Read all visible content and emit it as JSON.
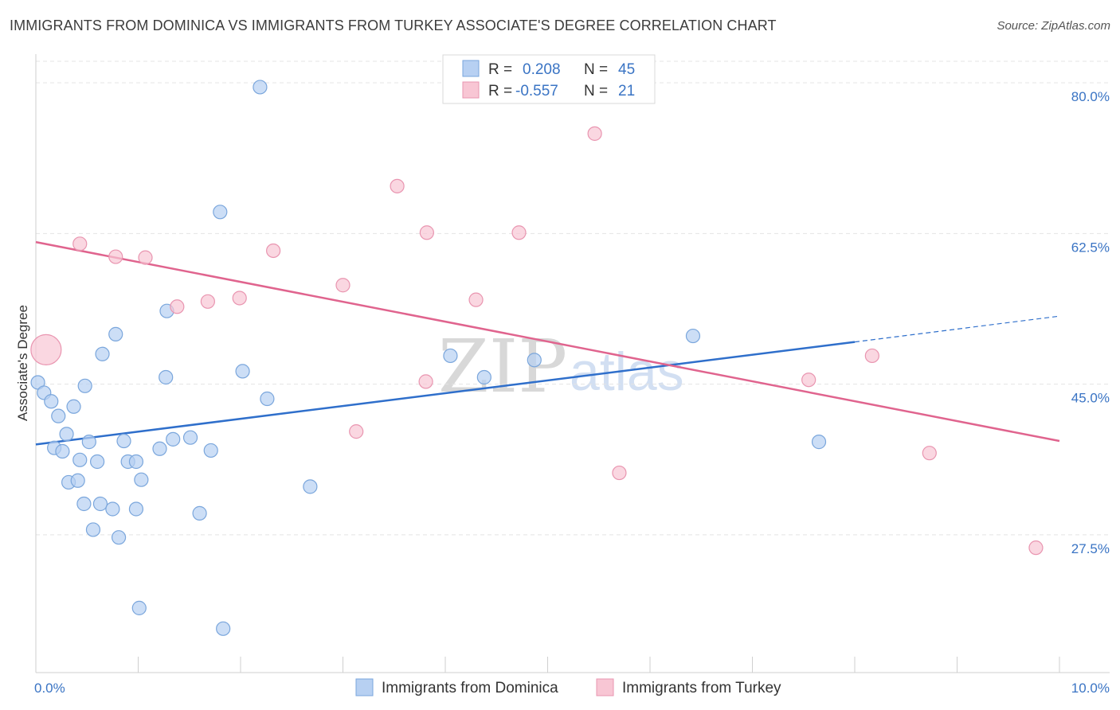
{
  "header": {
    "title": "IMMIGRANTS FROM DOMINICA VS IMMIGRANTS FROM TURKEY ASSOCIATE'S DEGREE CORRELATION CHART",
    "source": "Source: ZipAtlas.com"
  },
  "watermark": {
    "zip": "ZIP",
    "atlas": "atlas"
  },
  "colors": {
    "dominica_fill": "#b7d0f2",
    "dominica_stroke": "#7aa6dc",
    "dominica_line": "#2f6fcb",
    "turkey_fill": "#f8c6d4",
    "turkey_stroke": "#e995b0",
    "turkey_line": "#e0648e",
    "axis_text": "#3a74c4",
    "grid": "#e4e4e4"
  },
  "legend": {
    "rows": [
      {
        "r_label": "R =",
        "r_value": "0.208",
        "n_label": "N =",
        "n_value": "45"
      },
      {
        "r_label": "R =",
        "r_value": "-0.557",
        "n_label": "N =",
        "n_value": "21"
      }
    ]
  },
  "bottom_legend": [
    {
      "label": "Immigrants from Dominica"
    },
    {
      "label": "Immigrants from Turkey"
    }
  ],
  "chart_data": {
    "type": "scatter",
    "title": "IMMIGRANTS FROM DOMINICA VS IMMIGRANTS FROM TURKEY ASSOCIATE'S DEGREE CORRELATION CHART",
    "xlabel": "",
    "ylabel": "Associate's Degree",
    "xlim": [
      0,
      10
    ],
    "ylim": [
      11.5,
      82.5
    ],
    "x_tick_labels": [
      "0.0%",
      "10.0%"
    ],
    "y_ticks": [
      27.5,
      45.0,
      62.5,
      80.0
    ],
    "y_tick_labels": [
      "27.5%",
      "45.0%",
      "62.5%",
      "80.0%"
    ],
    "grid": true,
    "series": [
      {
        "name": "Immigrants from Dominica",
        "R": 0.208,
        "N": 45,
        "points": [
          [
            0.02,
            45.2
          ],
          [
            0.08,
            44.0
          ],
          [
            0.15,
            43.0
          ],
          [
            0.22,
            41.3
          ],
          [
            0.37,
            42.4
          ],
          [
            0.48,
            44.8
          ],
          [
            0.65,
            48.5
          ],
          [
            0.78,
            50.8
          ],
          [
            1.28,
            53.5
          ],
          [
            1.27,
            45.8
          ],
          [
            0.3,
            39.2
          ],
          [
            0.52,
            38.3
          ],
          [
            0.18,
            37.6
          ],
          [
            0.26,
            37.2
          ],
          [
            0.43,
            36.2
          ],
          [
            0.6,
            36.0
          ],
          [
            0.86,
            38.4
          ],
          [
            0.9,
            36.0
          ],
          [
            0.98,
            36.0
          ],
          [
            1.03,
            33.9
          ],
          [
            1.21,
            37.5
          ],
          [
            1.34,
            38.6
          ],
          [
            1.51,
            38.8
          ],
          [
            1.71,
            37.3
          ],
          [
            2.02,
            46.5
          ],
          [
            2.26,
            43.3
          ],
          [
            0.32,
            33.6
          ],
          [
            0.41,
            33.8
          ],
          [
            0.47,
            31.1
          ],
          [
            0.63,
            31.1
          ],
          [
            0.75,
            30.5
          ],
          [
            0.98,
            30.5
          ],
          [
            1.6,
            30.0
          ],
          [
            0.56,
            28.1
          ],
          [
            0.81,
            27.2
          ],
          [
            1.01,
            19.0
          ],
          [
            1.83,
            16.6
          ],
          [
            2.68,
            33.1
          ],
          [
            1.8,
            65.0
          ],
          [
            2.19,
            79.5
          ],
          [
            4.05,
            48.3
          ],
          [
            4.38,
            45.8
          ],
          [
            4.87,
            47.8
          ],
          [
            6.42,
            50.6
          ],
          [
            7.65,
            38.3
          ]
        ]
      },
      {
        "name": "Immigrants from Turkey",
        "R": -0.557,
        "N": 21,
        "points": [
          [
            0.1,
            49.0
          ],
          [
            0.43,
            61.3
          ],
          [
            0.78,
            59.8
          ],
          [
            1.07,
            59.7
          ],
          [
            1.38,
            54.0
          ],
          [
            1.68,
            54.6
          ],
          [
            1.99,
            55.0
          ],
          [
            2.32,
            60.5
          ],
          [
            3.0,
            56.5
          ],
          [
            3.13,
            39.5
          ],
          [
            3.53,
            68.0
          ],
          [
            3.82,
            62.6
          ],
          [
            3.81,
            45.3
          ],
          [
            4.3,
            54.8
          ],
          [
            4.72,
            62.6
          ],
          [
            5.46,
            74.1
          ],
          [
            5.7,
            34.7
          ],
          [
            7.55,
            45.5
          ],
          [
            8.17,
            48.3
          ],
          [
            8.73,
            37.0
          ],
          [
            9.77,
            26.0
          ]
        ]
      }
    ],
    "trendlines": [
      {
        "series": "Immigrants from Dominica",
        "x_start": 0.0,
        "y_start": 38.0,
        "x_solid_end": 8.0,
        "y_solid_end": 49.9,
        "x_dash_end": 10.0,
        "y_dash_end": 52.9
      },
      {
        "series": "Immigrants from Turkey",
        "x_start": 0.0,
        "y_start": 61.5,
        "x_end": 10.0,
        "y_end": 38.4
      }
    ]
  }
}
